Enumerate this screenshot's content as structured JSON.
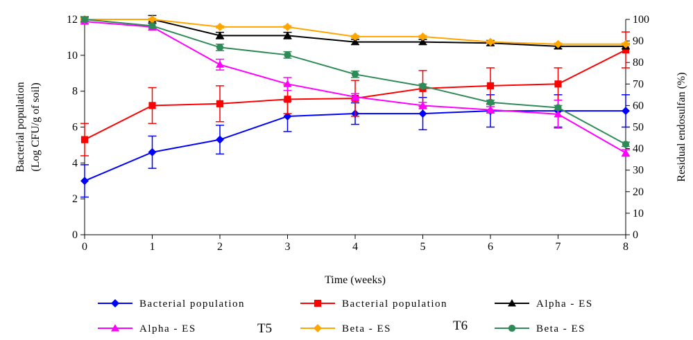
{
  "chart_data": {
    "type": "line",
    "xlabel": "Time (weeks)",
    "ylabel_left": [
      "Bacterial population",
      "(Log CFU/g of soil)"
    ],
    "ylabel_right": "Residual endosulfan (%)",
    "x": [
      0,
      1,
      2,
      3,
      4,
      5,
      6,
      7,
      8
    ],
    "xlim": [
      0,
      8
    ],
    "ylim_left": [
      0,
      12
    ],
    "ylim_right": [
      0,
      100
    ],
    "yticks_left": [
      0,
      2,
      4,
      6,
      8,
      10,
      12
    ],
    "yticks_right": [
      0,
      10,
      20,
      30,
      40,
      50,
      60,
      70,
      80,
      90,
      100
    ],
    "grid": false,
    "legend_position": "bottom",
    "group_labels": [
      "T5",
      "T6"
    ],
    "series": [
      {
        "name": "Bacterial population",
        "axis": "left",
        "color": "#0000ff",
        "marker": "diamond",
        "values": [
          3.0,
          4.6,
          5.3,
          6.6,
          6.75,
          6.75,
          6.9,
          6.9,
          6.9
        ],
        "errors": [
          0.9,
          0.9,
          0.8,
          0.85,
          0.6,
          0.9,
          0.9,
          0.9,
          0.9
        ]
      },
      {
        "name": "Bacterial population",
        "axis": "left",
        "color": "#ff0000",
        "marker": "square",
        "values": [
          5.3,
          7.2,
          7.3,
          7.55,
          7.6,
          8.15,
          8.3,
          8.4,
          10.3
        ],
        "errors": [
          0.9,
          1.0,
          1.0,
          0.8,
          1.0,
          1.0,
          1.0,
          0.9,
          1.0
        ]
      },
      {
        "name": "Alpha - ES",
        "axis": "right",
        "color": "#000000",
        "marker": "triangle",
        "values": [
          100,
          100,
          92.5,
          92.5,
          89.5,
          89.5,
          89,
          87.5,
          87.5
        ],
        "errors": [
          1.2,
          1.8,
          1.5,
          1.5,
          1.2,
          1.2,
          1.2,
          1.2,
          1.2
        ]
      },
      {
        "name": "Alpha - ES",
        "axis": "right",
        "color": "#ff00ff",
        "marker": "triangle",
        "values": [
          99,
          96.5,
          79,
          70,
          64,
          60,
          58,
          56,
          38
        ],
        "errors": [
          1.0,
          1.5,
          2.5,
          3.0,
          1.5,
          1.5,
          1.5,
          6.5,
          1.5
        ]
      },
      {
        "name": "Beta - ES",
        "axis": "right",
        "color": "#ffa500",
        "marker": "diamond",
        "values": [
          100,
          100,
          96.5,
          96.5,
          92,
          92,
          89.5,
          88.5,
          88.5
        ],
        "errors": [
          0.5,
          0.5,
          0.5,
          0.5,
          0.5,
          0.5,
          0.5,
          0.5,
          0.5
        ]
      },
      {
        "name": "Beta - ES",
        "axis": "right",
        "color": "#2e8b57",
        "marker": "circle",
        "values": [
          100,
          97,
          87,
          83.5,
          74.5,
          69,
          61.5,
          59,
          42
        ],
        "errors": [
          1.0,
          1.0,
          1.5,
          1.5,
          1.5,
          1.0,
          1.0,
          1.0,
          1.0
        ]
      }
    ]
  }
}
